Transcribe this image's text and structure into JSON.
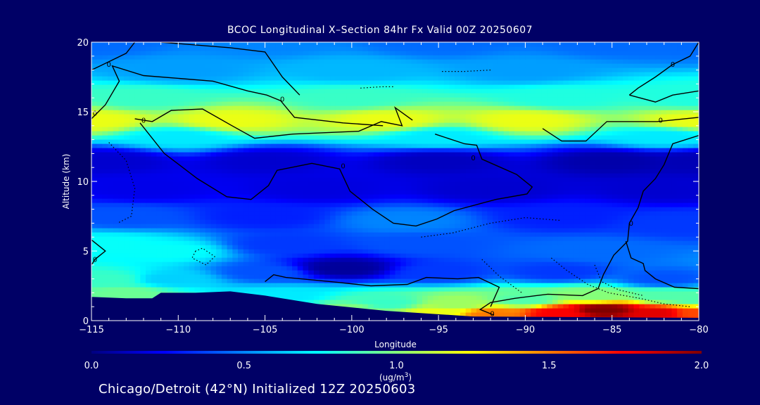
{
  "title": "BCOC Longitudinal X–Section 84hr  Fx Valid 00Z 20250607",
  "subtitle": "Chicago/Detroit (42°N) Initialized 12Z 20250603",
  "colors": {
    "background": "#000066",
    "text": "#ffffff",
    "contour": "#000000"
  },
  "chart_data": {
    "type": "heatmap",
    "xlabel": "Longitude",
    "ylabel": "Altitude (km)",
    "xlim": [
      -115,
      -80
    ],
    "ylim": [
      0,
      20
    ],
    "xticks": [
      "−115",
      "−110",
      "−105",
      "−100",
      "−95",
      "−90",
      "−85",
      "−80"
    ],
    "xtick_values": [
      -115,
      -110,
      -105,
      -100,
      -95,
      -90,
      -85,
      -80
    ],
    "yticks": [
      "0",
      "5",
      "10",
      "15",
      "20"
    ],
    "ytick_values": [
      0,
      5,
      10,
      15,
      20
    ],
    "colorbar": {
      "label_main": "(ug/m",
      "label_sup": "3",
      "label_close": ")",
      "range": [
        0,
        2.0
      ],
      "ticks": [
        "0.0",
        "0.5",
        "1.0",
        "1.5",
        "2.0"
      ],
      "tick_values": [
        0,
        0.5,
        1.0,
        1.5,
        2.0
      ]
    },
    "contour_label": "0",
    "contour_label_points": [
      [
        -114,
        18.4
      ],
      [
        -114.8,
        14.9
      ],
      [
        -112,
        14.4
      ],
      [
        -104,
        15.9
      ],
      [
        -100.5,
        11.1
      ],
      [
        -93,
        11.7
      ],
      [
        -82.2,
        14.4
      ],
      [
        -81.5,
        18.4
      ],
      [
        -83.9,
        7.0
      ],
      [
        -114.8,
        4.4
      ],
      [
        -91.9,
        0.5
      ]
    ],
    "terrain": [
      [
        -115,
        1.7
      ],
      [
        -113,
        1.6
      ],
      [
        -111.5,
        1.6
      ],
      [
        -111,
        2.0
      ],
      [
        -109,
        2.0
      ],
      [
        -107,
        2.1
      ],
      [
        -105,
        1.8
      ],
      [
        -102,
        1.2
      ],
      [
        -98,
        0.7
      ],
      [
        -93,
        0.3
      ],
      [
        -80,
        0.2
      ]
    ],
    "field_nodes": [
      {
        "x": -115,
        "y": 20,
        "v": 0.45
      },
      {
        "x": -105,
        "y": 20,
        "v": 0.5
      },
      {
        "x": -95,
        "y": 20,
        "v": 0.45
      },
      {
        "x": -85,
        "y": 20,
        "v": 0.45
      },
      {
        "x": -80,
        "y": 20,
        "v": 0.45
      },
      {
        "x": -110,
        "y": 18,
        "v": 0.55
      },
      {
        "x": -100,
        "y": 18,
        "v": 0.6
      },
      {
        "x": -90,
        "y": 18,
        "v": 0.55
      },
      {
        "x": -112,
        "y": 16,
        "v": 0.85
      },
      {
        "x": -100,
        "y": 16,
        "v": 0.85
      },
      {
        "x": -88,
        "y": 16,
        "v": 0.8
      },
      {
        "x": -80,
        "y": 16,
        "v": 0.8
      },
      {
        "x": -115,
        "y": 14.4,
        "v": 1.2
      },
      {
        "x": -107,
        "y": 14.4,
        "v": 1.2
      },
      {
        "x": -98,
        "y": 14.4,
        "v": 1.2
      },
      {
        "x": -90,
        "y": 14.4,
        "v": 1.2
      },
      {
        "x": -80,
        "y": 14.4,
        "v": 1.2
      },
      {
        "x": -110,
        "y": 13.2,
        "v": 0.7
      },
      {
        "x": -95,
        "y": 13.2,
        "v": 0.7
      },
      {
        "x": -82,
        "y": 13.2,
        "v": 0.7
      },
      {
        "x": -114,
        "y": 11.5,
        "v": 0.15
      },
      {
        "x": -105,
        "y": 11.5,
        "v": 0.15
      },
      {
        "x": -95,
        "y": 11.5,
        "v": 0.12
      },
      {
        "x": -85,
        "y": 11.5,
        "v": 0.08
      },
      {
        "x": -80,
        "y": 11.5,
        "v": 0.1
      },
      {
        "x": -112,
        "y": 9.5,
        "v": 0.2
      },
      {
        "x": -102,
        "y": 9.5,
        "v": 0.18
      },
      {
        "x": -92,
        "y": 9.5,
        "v": 0.15
      },
      {
        "x": -82,
        "y": 9.5,
        "v": 0.15
      },
      {
        "x": -113,
        "y": 7.5,
        "v": 0.4
      },
      {
        "x": -105,
        "y": 7.5,
        "v": 0.3
      },
      {
        "x": -97,
        "y": 7.2,
        "v": 0.5
      },
      {
        "x": -88,
        "y": 7.5,
        "v": 0.3
      },
      {
        "x": -81,
        "y": 7.0,
        "v": 0.35
      },
      {
        "x": -114,
        "y": 5.5,
        "v": 0.75
      },
      {
        "x": -110.5,
        "y": 5.0,
        "v": 0.75
      },
      {
        "x": -104,
        "y": 5.5,
        "v": 0.35
      },
      {
        "x": -96,
        "y": 5.5,
        "v": 0.4
      },
      {
        "x": -86,
        "y": 5.0,
        "v": 0.45
      },
      {
        "x": -114,
        "y": 3.0,
        "v": 0.85
      },
      {
        "x": -110.5,
        "y": 3.0,
        "v": 0.65
      },
      {
        "x": -105,
        "y": 3.5,
        "v": 0.4
      },
      {
        "x": -100.5,
        "y": 3.8,
        "v": 0.05
      },
      {
        "x": -95,
        "y": 3.5,
        "v": 0.35
      },
      {
        "x": -88,
        "y": 3.5,
        "v": 0.35
      },
      {
        "x": -82,
        "y": 3.0,
        "v": 0.4
      },
      {
        "x": -113,
        "y": 2.0,
        "v": 0.95
      },
      {
        "x": -104,
        "y": 1.8,
        "v": 0.7
      },
      {
        "x": -98,
        "y": 1.3,
        "v": 0.85
      },
      {
        "x": -94,
        "y": 1.2,
        "v": 1.05
      },
      {
        "x": -90,
        "y": 1.5,
        "v": 0.9
      },
      {
        "x": -86,
        "y": 1.8,
        "v": 1.0
      },
      {
        "x": -82,
        "y": 1.8,
        "v": 0.9
      },
      {
        "x": -80,
        "y": 1.5,
        "v": 0.9
      },
      {
        "x": -100,
        "y": 0.8,
        "v": 1.0
      },
      {
        "x": -95,
        "y": 0.6,
        "v": 1.2
      },
      {
        "x": -92,
        "y": 0.5,
        "v": 1.5
      },
      {
        "x": -88,
        "y": 0.6,
        "v": 1.75
      },
      {
        "x": -85.5,
        "y": 0.8,
        "v": 2.0
      },
      {
        "x": -82.5,
        "y": 0.6,
        "v": 1.8
      },
      {
        "x": -80,
        "y": 0.6,
        "v": 1.6
      }
    ],
    "contours": [
      [
        [
          -115,
          18.0
        ],
        [
          -114,
          18.6
        ],
        [
          -113,
          19.2
        ],
        [
          -112.5,
          20.0
        ]
      ],
      [
        [
          -111,
          20.0
        ],
        [
          -107,
          19.6
        ],
        [
          -105,
          19.3
        ],
        [
          -104,
          17.5
        ],
        [
          -103,
          16.2
        ]
      ],
      [
        [
          -115,
          14.5
        ],
        [
          -114.2,
          15.5
        ],
        [
          -113.4,
          17.2
        ],
        [
          -113.8,
          18.3
        ],
        [
          -112,
          17.6
        ],
        [
          -108,
          17.2
        ],
        [
          -106,
          16.5
        ],
        [
          -104.9,
          16.2
        ],
        [
          -104.1,
          15.8
        ],
        [
          -103.3,
          14.6
        ],
        [
          -100.5,
          14.2
        ],
        [
          -98.2,
          14.0
        ]
      ],
      [
        [
          -112.5,
          14.5
        ],
        [
          -111.5,
          14.3
        ],
        [
          -110.4,
          15.1
        ],
        [
          -108.6,
          15.2
        ],
        [
          -106.9,
          14.0
        ],
        [
          -105.6,
          13.1
        ],
        [
          -103.4,
          13.4
        ],
        [
          -99.6,
          13.6
        ],
        [
          -98.3,
          14.3
        ],
        [
          -97.1,
          14.0
        ],
        [
          -97.5,
          15.3
        ],
        [
          -96.5,
          14.4
        ]
      ],
      [
        [
          -95.2,
          13.4
        ],
        [
          -93.5,
          12.7
        ],
        [
          -92.8,
          12.6
        ],
        [
          -92.5,
          11.6
        ],
        [
          -90.5,
          10.5
        ],
        [
          -89.6,
          9.6
        ],
        [
          -89.9,
          9.1
        ],
        [
          -91.7,
          8.7
        ],
        [
          -94.1,
          7.9
        ],
        [
          -95.1,
          7.3
        ],
        [
          -96.3,
          6.8
        ],
        [
          -97.6,
          7.0
        ],
        [
          -98.8,
          8.0
        ],
        [
          -100.1,
          9.3
        ],
        [
          -100.7,
          10.9
        ],
        [
          -102.3,
          11.3
        ],
        [
          -104.3,
          10.8
        ],
        [
          -104.8,
          9.7
        ],
        [
          -105.8,
          8.7
        ],
        [
          -107.2,
          8.9
        ],
        [
          -108.9,
          10.2
        ],
        [
          -110.8,
          12.0
        ],
        [
          -112.2,
          14.2
        ]
      ],
      [
        [
          -89,
          13.8
        ],
        [
          -87.9,
          12.9
        ],
        [
          -86.5,
          12.9
        ],
        [
          -85.3,
          14.3
        ],
        [
          -82.4,
          14.3
        ],
        [
          -80,
          14.6
        ]
      ],
      [
        [
          -80,
          13.3
        ],
        [
          -81.5,
          12.7
        ],
        [
          -82.0,
          11.2
        ],
        [
          -82.5,
          10.2
        ],
        [
          -83.2,
          9.3
        ],
        [
          -83.5,
          8.1
        ],
        [
          -84,
          7.0
        ],
        [
          -84.1,
          5.7
        ],
        [
          -84.9,
          4.7
        ],
        [
          -85.5,
          3.3
        ],
        [
          -85.8,
          2.3
        ],
        [
          -86.7,
          1.8
        ],
        [
          -88.7,
          1.9
        ],
        [
          -90.6,
          1.6
        ],
        [
          -92,
          1.3
        ],
        [
          -92.6,
          0.8
        ],
        [
          -91.8,
          0.4
        ]
      ],
      [
        [
          -80,
          2.3
        ],
        [
          -81.4,
          2.4
        ],
        [
          -82.5,
          3.0
        ],
        [
          -83.1,
          3.6
        ],
        [
          -83.2,
          4.1
        ],
        [
          -83.9,
          4.5
        ],
        [
          -84.2,
          5.7
        ]
      ],
      [
        [
          -115,
          5.8
        ],
        [
          -114.2,
          5.0
        ],
        [
          -114.8,
          4.4
        ],
        [
          -115,
          4.0
        ]
      ],
      [
        [
          -105,
          2.8
        ],
        [
          -104.5,
          3.3
        ],
        [
          -103.8,
          3.1
        ],
        [
          -101.2,
          2.8
        ],
        [
          -98.9,
          2.5
        ],
        [
          -96.8,
          2.6
        ],
        [
          -95.7,
          3.1
        ],
        [
          -93.9,
          3.0
        ],
        [
          -92.7,
          3.1
        ],
        [
          -91.5,
          2.4
        ],
        [
          -92,
          1.0
        ]
      ],
      [
        [
          -81.5,
          18.4
        ],
        [
          -82.5,
          17.5
        ],
        [
          -83.5,
          16.7
        ],
        [
          -84,
          16.2
        ]
      ],
      [
        [
          -80,
          16.5
        ],
        [
          -81.5,
          16.2
        ],
        [
          -82.5,
          15.7
        ],
        [
          -84,
          16.2
        ]
      ],
      [
        [
          -81.5,
          18.4
        ],
        [
          -80.5,
          19.0
        ],
        [
          -80,
          20.0
        ]
      ]
    ],
    "dotted_contours": [
      [
        [
          -114,
          12.8
        ],
        [
          -113,
          11.5
        ],
        [
          -112.5,
          9.5
        ],
        [
          -112.7,
          7.5
        ],
        [
          -113.5,
          7.0
        ]
      ],
      [
        [
          -109,
          5.0
        ],
        [
          -109.2,
          4.5
        ],
        [
          -108.4,
          4.0
        ],
        [
          -107.9,
          4.6
        ],
        [
          -108.6,
          5.2
        ],
        [
          -109,
          5.0
        ]
      ],
      [
        [
          -96,
          6.0
        ],
        [
          -94.2,
          6.3
        ],
        [
          -92,
          7.0
        ],
        [
          -90,
          7.4
        ],
        [
          -88,
          7.2
        ]
      ],
      [
        [
          -92.5,
          4.4
        ],
        [
          -91.5,
          3.2
        ],
        [
          -90.2,
          2.0
        ]
      ],
      [
        [
          -88.5,
          4.5
        ],
        [
          -87.6,
          3.6
        ],
        [
          -86.4,
          2.6
        ],
        [
          -85.2,
          2.0
        ],
        [
          -83.4,
          1.6
        ],
        [
          -82,
          1.2
        ],
        [
          -80.5,
          1.0
        ]
      ],
      [
        [
          -86,
          4.0
        ],
        [
          -85.6,
          2.8
        ],
        [
          -84.6,
          2.2
        ],
        [
          -83.2,
          1.8
        ]
      ],
      [
        [
          -99.5,
          16.7
        ],
        [
          -98.3,
          16.8
        ],
        [
          -97.6,
          16.8
        ]
      ],
      [
        [
          -94.8,
          17.9
        ],
        [
          -93.5,
          17.9
        ],
        [
          -92.0,
          18.0
        ]
      ]
    ]
  }
}
